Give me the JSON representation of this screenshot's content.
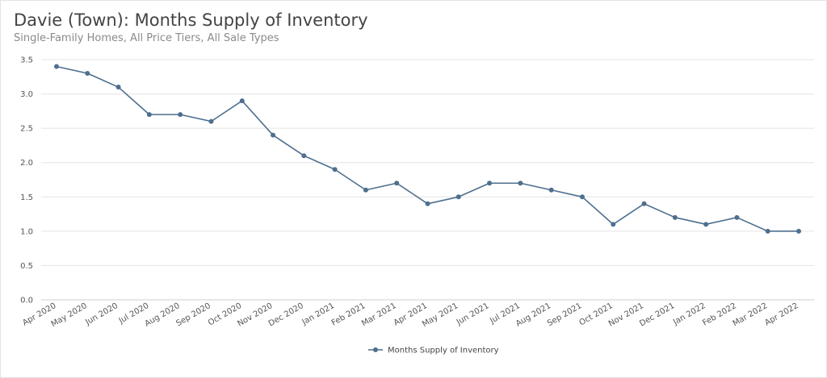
{
  "header": {
    "title": "Davie (Town): Months Supply of Inventory",
    "subtitle": "Single-Family Homes, All Price Tiers, All Sale Types"
  },
  "chart_data": {
    "type": "line",
    "title": "Davie (Town): Months Supply of Inventory",
    "subtitle": "Single-Family Homes, All Price Tiers, All Sale Types",
    "xlabel": "",
    "ylabel": "",
    "categories": [
      "Apr 2020",
      "May 2020",
      "Jun 2020",
      "Jul 2020",
      "Aug 2020",
      "Sep 2020",
      "Oct 2020",
      "Nov 2020",
      "Dec 2020",
      "Jan 2021",
      "Feb 2021",
      "Mar 2021",
      "Apr 2021",
      "May 2021",
      "Jun 2021",
      "Jul 2021",
      "Aug 2021",
      "Sep 2021",
      "Oct 2021",
      "Nov 2021",
      "Dec 2021",
      "Jan 2022",
      "Feb 2022",
      "Mar 2022",
      "Apr 2022"
    ],
    "series": [
      {
        "name": "Months Supply of Inventory",
        "color": "#4e6f8e",
        "values": [
          3.4,
          3.3,
          3.1,
          2.7,
          2.7,
          2.6,
          2.9,
          2.4,
          2.1,
          1.9,
          1.6,
          1.7,
          1.4,
          1.5,
          1.7,
          1.7,
          1.6,
          1.5,
          1.1,
          1.4,
          1.2,
          1.1,
          1.2,
          1.0,
          1.0
        ]
      }
    ],
    "ylim": [
      0,
      3.5
    ],
    "yticks": [
      "0.0",
      "0.5",
      "1.0",
      "1.5",
      "2.0",
      "2.5",
      "3.0",
      "3.5"
    ],
    "grid": true,
    "legend_position": "bottom-center"
  }
}
